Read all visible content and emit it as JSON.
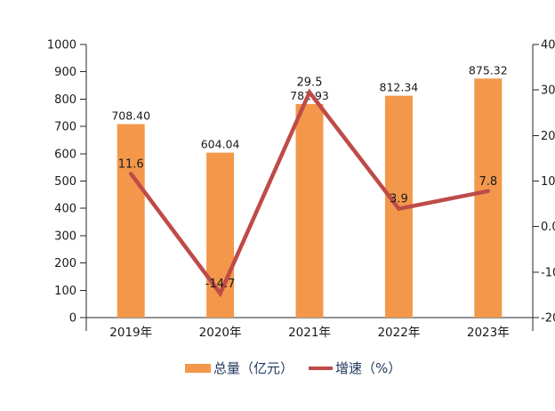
{
  "chart_data": {
    "type": "combo-bar-line",
    "title": "",
    "categories": [
      "2019年",
      "2020年",
      "2021年",
      "2022年",
      "2023年"
    ],
    "series": [
      {
        "name": "总量（亿元）",
        "chart_type": "bar",
        "axis": "left",
        "values": [
          708.4,
          604.04,
          781.93,
          812.34,
          875.32
        ],
        "data_labels": [
          "708.40",
          "604.04",
          "781.93",
          "812.34",
          "875.32"
        ],
        "color": "#F3984B"
      },
      {
        "name": "增速（%）",
        "chart_type": "line",
        "axis": "right",
        "values": [
          11.6,
          -14.7,
          29.5,
          3.9,
          7.8
        ],
        "data_labels": [
          "11.6",
          "-14.7",
          "29.5",
          "3.9",
          "7.8"
        ],
        "color": "#BE4B48"
      }
    ],
    "left_axis": {
      "min": 0,
      "max": 1000,
      "step": 100,
      "tick_labels": [
        "1000",
        "900",
        "800",
        "700",
        "600",
        "500",
        "400",
        "300",
        "200",
        "100",
        "0"
      ]
    },
    "right_axis": {
      "min": -20,
      "max": 40,
      "step": 10,
      "tick_labels": [
        "40.",
        "30.",
        "20.",
        "10.",
        "0.0",
        "-10",
        "-20"
      ]
    },
    "legend": [
      {
        "label": "总量（亿元）"
      },
      {
        "label": "增速（%）"
      }
    ],
    "grid": "off",
    "legend_position": "bottom"
  },
  "colors": {
    "bar": "#F3984B",
    "line": "#BE4B48",
    "legend_text": "#21395E",
    "axis_text": "#1A1A1A",
    "axis_line": "#262626",
    "background": "#FFFFFF"
  }
}
